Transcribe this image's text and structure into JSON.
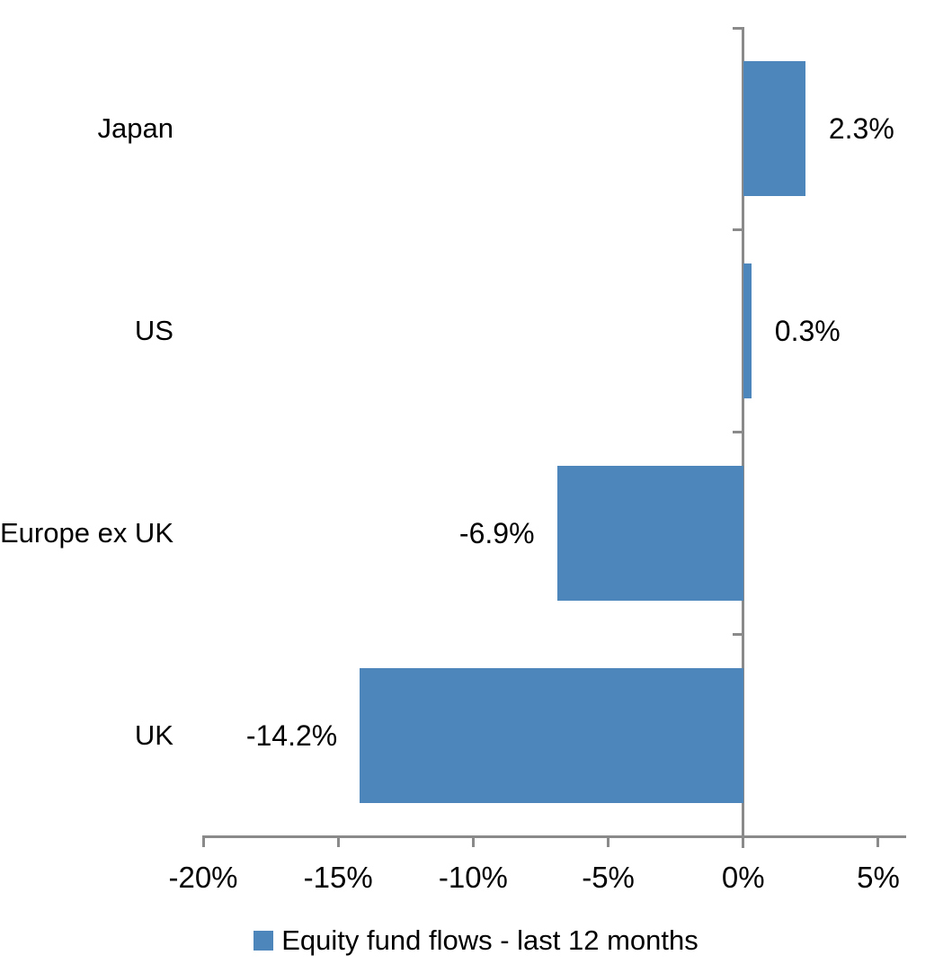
{
  "chart_data": {
    "type": "bar",
    "orientation": "horizontal",
    "title": "",
    "categories": [
      "Japan",
      "US",
      "Europe ex UK",
      "UK"
    ],
    "values": [
      2.3,
      0.3,
      -6.9,
      -14.2
    ],
    "data_labels": [
      "2.3%",
      "0.3%",
      "-6.9%",
      "-14.2%"
    ],
    "legend_label": "Equity fund flows - last 12 months",
    "legend_position": "bottom",
    "xlim": [
      -20,
      6
    ],
    "x_ticks": [
      -20,
      -15,
      -10,
      -5,
      0,
      5
    ],
    "x_tick_labels": [
      "-20%",
      "-15%",
      "-10%",
      "-5%",
      "0%",
      "5%"
    ],
    "grid": false,
    "colors": {
      "bar": "#4D86BB",
      "axis": "#8A8A8A",
      "text": "#000000",
      "background": "#FFFFFF"
    }
  }
}
